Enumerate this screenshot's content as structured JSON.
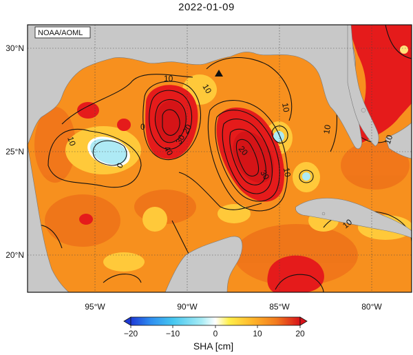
{
  "title": "2022-01-09",
  "credit": "NOAA/AOML",
  "colorbar": {
    "label": "SHA [cm]",
    "ticks": [
      "-20",
      "-10",
      "0",
      "10",
      "20"
    ]
  },
  "axes": {
    "lon_ticks": [
      "95°W",
      "90°W",
      "85°W",
      "80°W"
    ],
    "lat_ticks": [
      "30°N",
      "25°N",
      "20°N"
    ]
  },
  "contour_labels": [
    "10",
    "10",
    "10",
    "10",
    "10",
    "10",
    "0",
    "0",
    "40",
    "30",
    "20",
    "20",
    "30",
    "10",
    "10"
  ],
  "colors": {
    "land": "#c8c8c8",
    "ocean_base": "#f7901e",
    "high": "#e21818",
    "low": "#aeeaf5",
    "mid": "#ffd43a"
  }
}
